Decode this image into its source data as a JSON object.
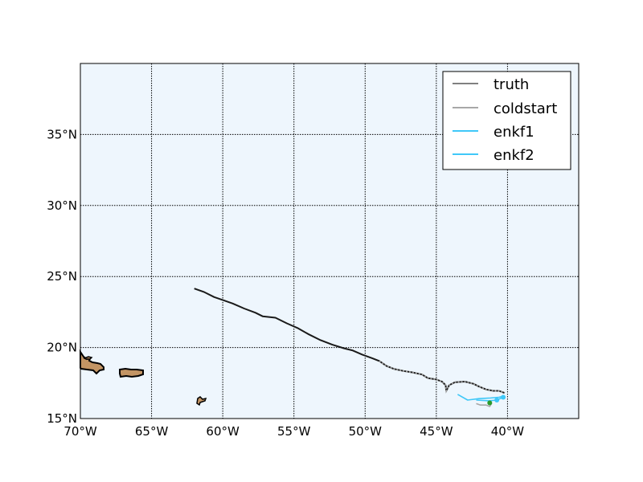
{
  "map": {
    "ocean_color": "#eef6fd",
    "land_color": "#c39564",
    "x_ticks": [
      "70°W",
      "65°W",
      "60°W",
      "55°W",
      "50°W",
      "45°W",
      "40°W"
    ],
    "y_ticks": [
      "15°N",
      "20°N",
      "25°N",
      "30°N",
      "35°N"
    ],
    "lon_values": [
      -70,
      -65,
      -60,
      -55,
      -50,
      -45,
      -40
    ],
    "lat_values": [
      15,
      20,
      25,
      30,
      35
    ],
    "lon_range": [
      -70,
      -35
    ],
    "lat_range": [
      15,
      40
    ]
  },
  "legend": {
    "placement": "top-right",
    "items": [
      {
        "label": "truth",
        "color": "#808080"
      },
      {
        "label": "coldstart",
        "color": "#a8a8a8"
      },
      {
        "label": "enkf1",
        "color": "#40c8f8"
      },
      {
        "label": "enkf2",
        "color": "#40c8f8"
      }
    ]
  },
  "chart_data": {
    "type": "line",
    "series": [
      {
        "name": "truth",
        "color": "#1a1a1a",
        "points": [
          [
            -62.0,
            24.15
          ],
          [
            -61.3,
            23.9
          ],
          [
            -60.6,
            23.55
          ],
          [
            -60.0,
            23.35
          ],
          [
            -59.3,
            23.1
          ],
          [
            -58.5,
            22.75
          ],
          [
            -57.7,
            22.45
          ],
          [
            -57.2,
            22.2
          ],
          [
            -56.3,
            22.1
          ],
          [
            -55.5,
            21.7
          ],
          [
            -54.7,
            21.35
          ],
          [
            -54.0,
            20.95
          ],
          [
            -53.2,
            20.55
          ],
          [
            -52.3,
            20.2
          ],
          [
            -51.5,
            19.95
          ],
          [
            -50.9,
            19.8
          ],
          [
            -50.2,
            19.5
          ],
          [
            -49.5,
            19.25
          ],
          [
            -49.0,
            19.05
          ],
          [
            -48.5,
            18.7
          ],
          [
            -48.0,
            18.5
          ],
          [
            -47.3,
            18.35
          ],
          [
            -46.7,
            18.25
          ],
          [
            -46.0,
            18.1
          ],
          [
            -45.6,
            17.85
          ],
          [
            -45.0,
            17.75
          ],
          [
            -44.6,
            17.6
          ],
          [
            -44.35,
            17.35
          ],
          [
            -44.3,
            16.95
          ],
          [
            -44.1,
            17.35
          ],
          [
            -43.7,
            17.55
          ],
          [
            -43.0,
            17.6
          ],
          [
            -42.4,
            17.45
          ],
          [
            -42.0,
            17.25
          ],
          [
            -41.5,
            17.05
          ],
          [
            -41.0,
            16.95
          ],
          [
            -40.6,
            16.95
          ],
          [
            -40.2,
            16.8
          ]
        ]
      },
      {
        "name": "coldstart",
        "color": "#a8a8a8",
        "points": [
          [
            -42.2,
            16.05
          ],
          [
            -41.9,
            15.95
          ],
          [
            -41.5,
            15.95
          ],
          [
            -41.25,
            15.85
          ],
          [
            -41.1,
            16.1
          ]
        ]
      },
      {
        "name": "enkf1",
        "color": "#40c8f8",
        "points": [
          [
            -43.5,
            16.7
          ],
          [
            -42.8,
            16.3
          ],
          [
            -42.0,
            16.4
          ],
          [
            -41.2,
            16.45
          ],
          [
            -40.6,
            16.5
          ],
          [
            -40.2,
            16.6
          ]
        ]
      },
      {
        "name": "enkf2",
        "color": "#40c8f8",
        "points": [
          [
            -42.2,
            16.3
          ],
          [
            -41.3,
            16.25
          ],
          [
            -40.75,
            16.3
          ],
          [
            -40.3,
            16.5
          ]
        ]
      }
    ],
    "markers": [
      {
        "color": "#2a9a2a",
        "point": [
          -41.25,
          16.1
        ]
      },
      {
        "color": "#40c8f8",
        "point": [
          -40.75,
          16.3
        ]
      },
      {
        "color": "#40c8f8",
        "point": [
          -40.3,
          16.5
        ]
      }
    ],
    "grid": true
  }
}
